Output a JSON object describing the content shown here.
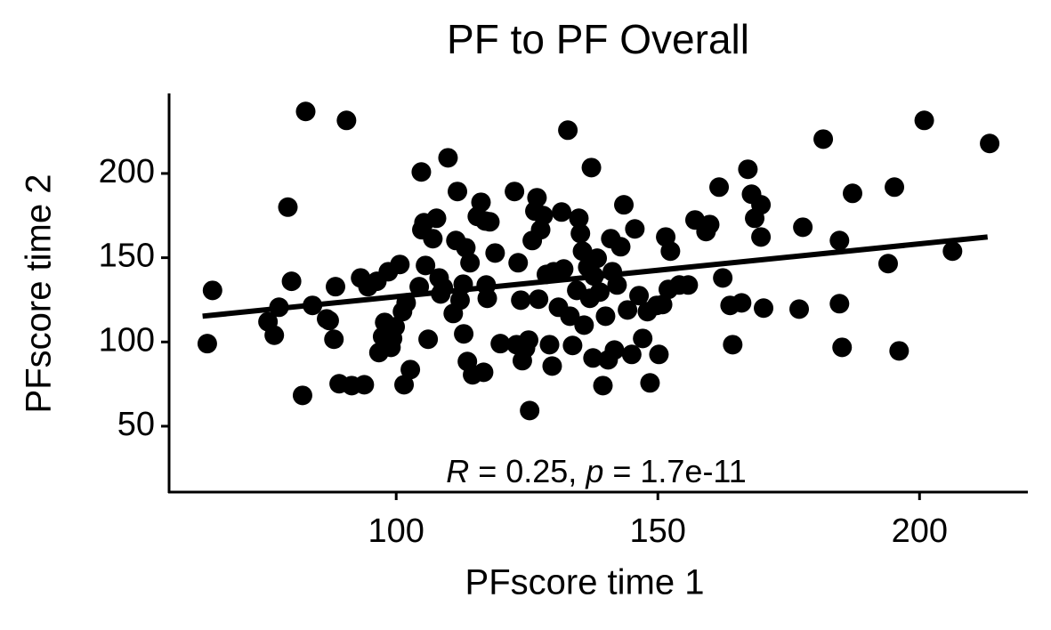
{
  "chart_data": {
    "type": "scatter",
    "title": "PF to PF Overall",
    "x_label": "PFscore time 1",
    "y_label": "PFscore time 2",
    "annotation": [
      "R",
      " = 0.25, ",
      "p",
      " = 1.7e-11"
    ],
    "color": "#000000",
    "x": [
      63.9,
      64.9,
      75.5,
      76.7,
      77.6,
      79.3,
      80,
      82.1,
      82.7,
      84,
      86.7,
      87.2,
      88.1,
      88.4,
      89.1,
      90.5,
      91.5,
      93.2,
      93.9,
      94.6,
      96.3,
      96.7,
      97.4,
      97.8,
      98.5,
      99,
      99.3,
      99.8,
      100.7,
      101.2,
      101.5,
      101.9,
      102.7,
      104.4,
      104.8,
      104.9,
      105.3,
      105.6,
      106.1,
      107,
      107.7,
      108.2,
      108.5,
      109,
      109.9,
      110.9,
      111.4,
      111.7,
      112.2,
      112.8,
      112.9,
      113.3,
      113.6,
      114.1,
      114.6,
      115.5,
      116.2,
      116.7,
      117,
      117.2,
      117.4,
      117.9,
      118.9,
      119.9,
      122.6,
      123,
      123.3,
      123.8,
      124.1,
      124.7,
      125.3,
      125.5,
      126,
      126.5,
      126.9,
      127.2,
      127.6,
      128.1,
      128.7,
      129.3,
      129.8,
      130.1,
      131,
      131.6,
      132,
      132.8,
      133.2,
      133.7,
      134.5,
      134.9,
      135.2,
      135.6,
      135.9,
      136.6,
      137,
      137.3,
      137.6,
      137.8,
      138.4,
      138.9,
      139.5,
      140,
      140.5,
      141,
      141.3,
      141.7,
      142.2,
      142.9,
      143.5,
      144.2,
      145,
      145.6,
      146.4,
      147.1,
      148,
      148.5,
      149.8,
      150.2,
      150.9,
      151.5,
      152,
      152.4,
      154.1,
      155.8,
      157.1,
      159.2,
      159.9,
      161.7,
      162.4,
      163.8,
      164.3,
      166,
      167.2,
      167.9,
      168.5,
      169.7,
      169.7,
      170.2,
      177.7,
      177,
      181.6,
      184.7,
      184.7,
      185.2,
      187.2,
      194,
      195.2,
      196.1,
      200.9,
      206.3,
      213.4
    ],
    "y": [
      99,
      130.6,
      112,
      104,
      120.6,
      180,
      136,
      68.3,
      236.8,
      121.7,
      113.7,
      112.7,
      101.6,
      132.8,
      75.2,
      231.5,
      74.1,
      138,
      74.6,
      132.8,
      136,
      93.7,
      103.2,
      111.6,
      141.7,
      96.8,
      102.1,
      109,
      146,
      118,
      74.6,
      123.2,
      83.6,
      132.8,
      200.9,
      166.6,
      170.8,
      145.4,
      101.6,
      161.3,
      173.4,
      138,
      128.5,
      132.2,
      209.3,
      116.9,
      160.2,
      189.3,
      124.8,
      134.3,
      104.8,
      155.9,
      88.4,
      147,
      80.5,
      174.5,
      182.9,
      82,
      171.8,
      133.8,
      125.9,
      171.3,
      152.8,
      99,
      189.3,
      98.4,
      147,
      124.8,
      88.9,
      96.3,
      101.1,
      59.3,
      160.2,
      177.7,
      185.6,
      125.4,
      166.6,
      175,
      140.1,
      98.4,
      85.7,
      141.7,
      120.6,
      177.1,
      143.3,
      225.7,
      115.3,
      97.9,
      130.6,
      173.4,
      164.4,
      153.9,
      110,
      144.4,
      125.9,
      203.5,
      90.5,
      139.1,
      149.7,
      129.6,
      74.1,
      115.3,
      89.4,
      161.3,
      141.7,
      95.2,
      133.8,
      156.5,
      181.4,
      119,
      92.6,
      167.1,
      127.5,
      102.1,
      118,
      75.7,
      121.7,
      92.6,
      122.2,
      162.3,
      131.2,
      153.9,
      133.8,
      133.8,
      172.4,
      165.5,
      169.7,
      191.9,
      138,
      121.7,
      98.4,
      123.2,
      202.5,
      187.7,
      173.4,
      181.4,
      162.3,
      120.1,
      168.1,
      119.5,
      220.4,
      160.2,
      122.7,
      96.8,
      188.2,
      146.5,
      191.9,
      94.7,
      231.5,
      153.9,
      217.8
    ],
    "fit": {
      "x": [
        63,
        213
      ],
      "y": [
        115.3,
        162.3
      ]
    },
    "xlim": [
      56.6,
      220.7
    ],
    "ylim": [
      10.9,
      247.5
    ],
    "xticks": [
      100,
      150,
      200
    ],
    "yticks": [
      50,
      100,
      150,
      200
    ],
    "grid": false
  }
}
